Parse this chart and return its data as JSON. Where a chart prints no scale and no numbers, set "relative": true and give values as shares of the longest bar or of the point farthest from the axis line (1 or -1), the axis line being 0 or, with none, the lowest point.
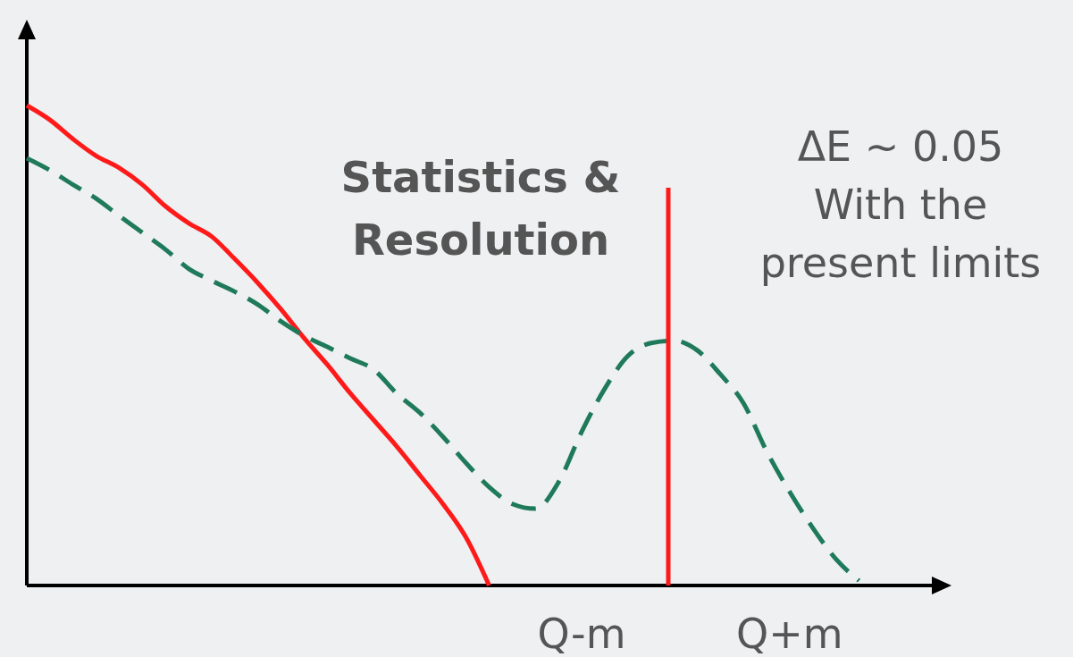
{
  "chart_data": {
    "type": "line",
    "relative": true,
    "tick_labels": "x",
    "categories": [
      null,
      null,
      null,
      null,
      null,
      null,
      null,
      null,
      null,
      null,
      null,
      null,
      null,
      null,
      null,
      null,
      null,
      null,
      null,
      null,
      null,
      null,
      null,
      null,
      "Q-m",
      null,
      null,
      null,
      null,
      null,
      null,
      null,
      null,
      "Q+m",
      null,
      null,
      null,
      null,
      null,
      null,
      null
    ],
    "series": [
      {
        "color": "#ff1a1a",
        "line_style": "solid",
        "values": [
          1.0,
          0.97,
          0.93,
          0.895,
          0.87,
          0.835,
          0.79,
          0.755,
          0.727,
          0.68,
          0.63,
          0.575,
          0.515,
          0.46,
          0.4,
          0.345,
          0.29,
          0.23,
          0.17,
          0.1,
          0,
          null,
          null,
          null,
          null,
          null,
          null,
          null,
          null,
          null,
          null,
          null,
          null,
          null,
          null,
          null,
          null,
          null,
          null,
          null,
          null
        ]
      },
      {
        "color": "#1f7a5a",
        "line_style": "dashed",
        "values": [
          0.89,
          0.865,
          0.835,
          0.806,
          0.77,
          0.735,
          0.7,
          0.66,
          0.635,
          0.612,
          0.585,
          0.55,
          0.52,
          0.497,
          0.473,
          0.45,
          0.4,
          0.36,
          0.31,
          0.255,
          0.205,
          0.17,
          0.16,
          0.215,
          0.32,
          0.41,
          0.478,
          0.505,
          0.51,
          0.49,
          0.44,
          0.38,
          0.28,
          0.195,
          0.12,
          0.055,
          0.01,
          null,
          null,
          null,
          null
        ]
      }
    ],
    "annotations": [
      "Statistics  &\nResolution",
      "ΔE ~ 0.05\nWith the\npresent limits"
    ]
  }
}
